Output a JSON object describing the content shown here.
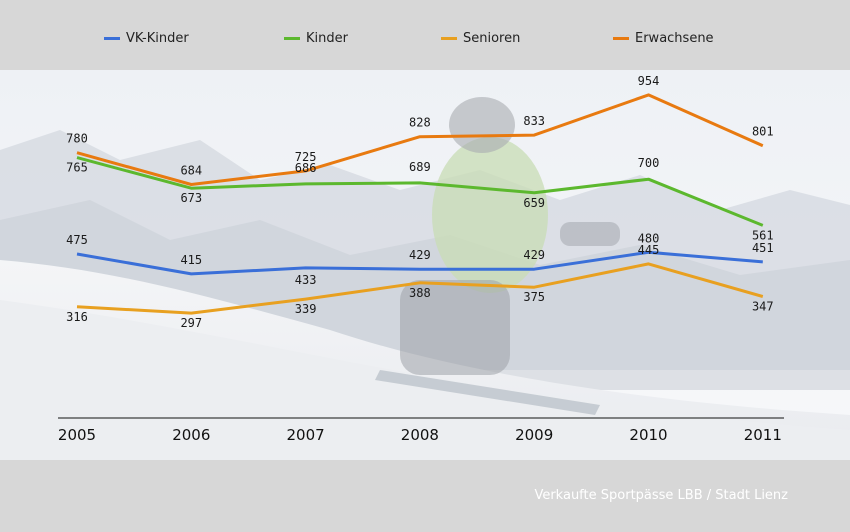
{
  "caption": "Verkaufte Sportpässe LBB / Stadt Lienz",
  "chart_data": {
    "type": "line",
    "categories": [
      "2005",
      "2006",
      "2007",
      "2008",
      "2009",
      "2010",
      "2011"
    ],
    "series": [
      {
        "name": "VK-Kinder",
        "color": "#3a6fd8",
        "values": [
          475,
          415,
          433,
          429,
          429,
          480,
          451
        ]
      },
      {
        "name": "Kinder",
        "color": "#5cb82e",
        "values": [
          765,
          673,
          686,
          689,
          659,
          700,
          561
        ]
      },
      {
        "name": "Senioren",
        "color": "#e8a020",
        "values": [
          316,
          297,
          339,
          388,
          375,
          445,
          347
        ]
      },
      {
        "name": "Erwachsene",
        "color": "#e87a10",
        "values": [
          780,
          684,
          725,
          828,
          833,
          954,
          801
        ]
      }
    ],
    "legend_position": "top",
    "grid": false
  }
}
